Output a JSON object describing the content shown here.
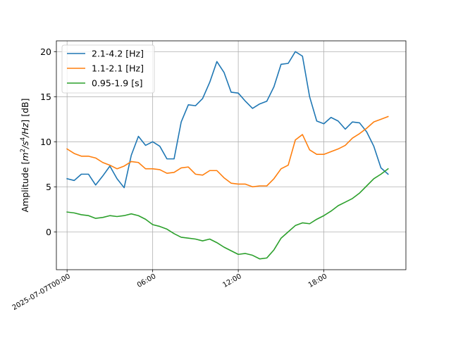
{
  "chart_data": {
    "type": "line",
    "ylabel": "Amplitude [$m^2/s^4/Hz$] [dB]",
    "ylabel_parts": [
      "Amplitude [",
      "m",
      "2",
      "/",
      "s",
      "4",
      "/",
      "Hz",
      "] [dB]"
    ],
    "xlim_hours": [
      -0.75,
      23.75
    ],
    "ylim": [
      -4.2,
      21.2
    ],
    "yticks": [
      0,
      5,
      10,
      15,
      20
    ],
    "ytick_labels": [
      "0",
      "5",
      "10",
      "15",
      "20"
    ],
    "xticks_hours": [
      0,
      6,
      12,
      18
    ],
    "xtick_labels": [
      "2025-07-07T00:00",
      "06:00",
      "12:00",
      "18:00"
    ],
    "grid": true,
    "legend_location": "upper-left",
    "x_hours": [
      0,
      0.5,
      1,
      1.5,
      2,
      2.5,
      3,
      3.5,
      4,
      4.5,
      5,
      5.5,
      6,
      6.5,
      7,
      7.5,
      8,
      8.5,
      9,
      9.5,
      10,
      10.5,
      11,
      11.5,
      12,
      12.5,
      13,
      13.5,
      14,
      14.5,
      15,
      15.5,
      16,
      16.5,
      17,
      17.5,
      18,
      18.5,
      19,
      19.5,
      20,
      20.5,
      21,
      21.5,
      22,
      22.5
    ],
    "series": [
      {
        "name": "2.1-4.2 [Hz]",
        "color": "#1f77b4",
        "values": [
          5.9,
          5.7,
          6.4,
          6.4,
          5.2,
          6.2,
          7.3,
          5.9,
          4.9,
          8.5,
          10.6,
          9.6,
          10.0,
          9.5,
          8.1,
          8.1,
          12.2,
          14.1,
          14.0,
          14.8,
          16.6,
          18.9,
          17.7,
          15.5,
          15.4,
          14.5,
          13.7,
          14.2,
          14.5,
          16.1,
          18.6,
          18.7,
          20.0,
          19.5,
          15.0,
          12.3,
          12.0,
          12.7,
          12.3,
          11.4,
          12.2,
          12.1,
          11.1,
          9.5,
          7.1,
          6.4
        ]
      },
      {
        "name": "1.1-2.1 [Hz]",
        "color": "#ff7f0e",
        "values": [
          9.2,
          8.7,
          8.4,
          8.4,
          8.2,
          7.7,
          7.4,
          7.0,
          7.3,
          7.8,
          7.7,
          7.0,
          7.0,
          6.9,
          6.5,
          6.6,
          7.1,
          7.2,
          6.4,
          6.3,
          6.8,
          6.8,
          6.0,
          5.4,
          5.3,
          5.3,
          5.0,
          5.1,
          5.1,
          5.9,
          7.0,
          7.4,
          10.2,
          10.8,
          9.1,
          8.6,
          8.6,
          8.9,
          9.2,
          9.6,
          10.4,
          10.9,
          11.5,
          12.2,
          12.5,
          12.8
        ]
      },
      {
        "name": "0.95-1.9 [s]",
        "color": "#2ca02c",
        "values": [
          2.2,
          2.1,
          1.9,
          1.8,
          1.5,
          1.6,
          1.8,
          1.7,
          1.8,
          2.0,
          1.8,
          1.4,
          0.8,
          0.6,
          0.3,
          -0.2,
          -0.6,
          -0.7,
          -0.8,
          -1.0,
          -0.8,
          -1.2,
          -1.7,
          -2.1,
          -2.5,
          -2.4,
          -2.6,
          -3.0,
          -2.9,
          -2.0,
          -0.7,
          0.0,
          0.7,
          1.0,
          0.9,
          1.4,
          1.8,
          2.3,
          2.9,
          3.3,
          3.7,
          4.3,
          5.1,
          5.9,
          6.4,
          7.0
        ]
      }
    ]
  }
}
